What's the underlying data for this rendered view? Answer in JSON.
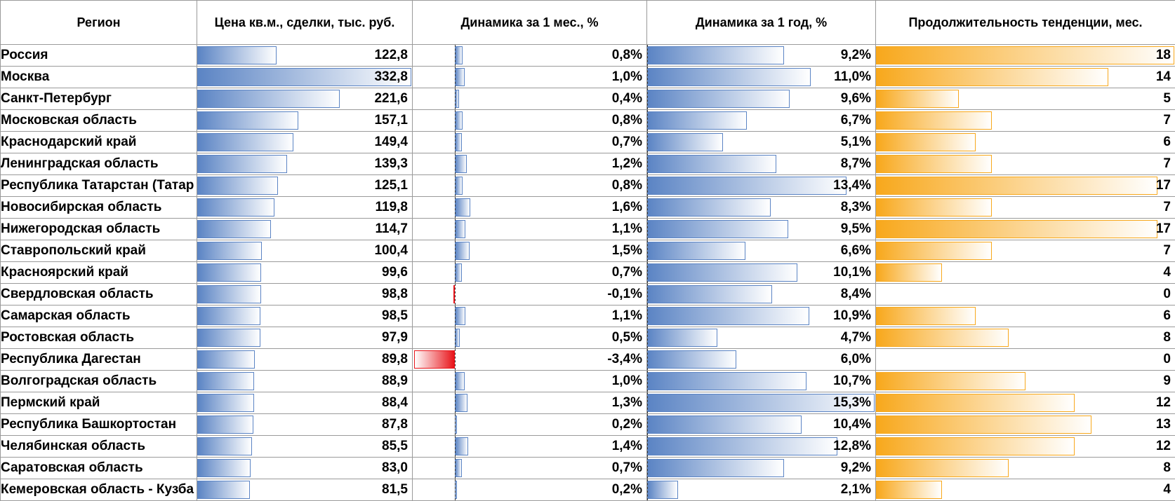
{
  "headers": {
    "region": "Регион",
    "price": "Цена кв.м., сделки, тыс. руб.",
    "month": "Динамика за 1 мес., %",
    "year": "Динамика за 1 год, %",
    "duration": "Продолжительность тенденции, мес."
  },
  "rows": [
    {
      "region": "Россия",
      "price": "122,8",
      "price_value": 122.8,
      "month": "0,8%",
      "month_value": 0.8,
      "year": "9,2%",
      "year_value": 9.2,
      "duration": "18",
      "duration_value": 18
    },
    {
      "region": "Москва",
      "price": "332,8",
      "price_value": 332.8,
      "month": "1,0%",
      "month_value": 1.0,
      "year": "11,0%",
      "year_value": 11.0,
      "duration": "14",
      "duration_value": 14
    },
    {
      "region": "Санкт-Петербург",
      "price": "221,6",
      "price_value": 221.6,
      "month": "0,4%",
      "month_value": 0.4,
      "year": "9,6%",
      "year_value": 9.6,
      "duration": "5",
      "duration_value": 5
    },
    {
      "region": "Московская область",
      "price": "157,1",
      "price_value": 157.1,
      "month": "0,8%",
      "month_value": 0.8,
      "year": "6,7%",
      "year_value": 6.7,
      "duration": "7",
      "duration_value": 7
    },
    {
      "region": "Краснодарский край",
      "price": "149,4",
      "price_value": 149.4,
      "month": "0,7%",
      "month_value": 0.7,
      "year": "5,1%",
      "year_value": 5.1,
      "duration": "6",
      "duration_value": 6
    },
    {
      "region": "Ленинградская область",
      "price": "139,3",
      "price_value": 139.3,
      "month": "1,2%",
      "month_value": 1.2,
      "year": "8,7%",
      "year_value": 8.7,
      "duration": "7",
      "duration_value": 7
    },
    {
      "region": "Республика Татарстан (Татар",
      "price": "125,1",
      "price_value": 125.1,
      "month": "0,8%",
      "month_value": 0.8,
      "year": "13,4%",
      "year_value": 13.4,
      "duration": "17",
      "duration_value": 17
    },
    {
      "region": "Новосибирская область",
      "price": "119,8",
      "price_value": 119.8,
      "month": "1,6%",
      "month_value": 1.6,
      "year": "8,3%",
      "year_value": 8.3,
      "duration": "7",
      "duration_value": 7
    },
    {
      "region": "Нижегородская область",
      "price": "114,7",
      "price_value": 114.7,
      "month": "1,1%",
      "month_value": 1.1,
      "year": "9,5%",
      "year_value": 9.5,
      "duration": "17",
      "duration_value": 17
    },
    {
      "region": "Ставропольский край",
      "price": "100,4",
      "price_value": 100.4,
      "month": "1,5%",
      "month_value": 1.5,
      "year": "6,6%",
      "year_value": 6.6,
      "duration": "7",
      "duration_value": 7
    },
    {
      "region": "Красноярский край",
      "price": "99,6",
      "price_value": 99.6,
      "month": "0,7%",
      "month_value": 0.7,
      "year": "10,1%",
      "year_value": 10.1,
      "duration": "4",
      "duration_value": 4
    },
    {
      "region": "Свердловская область",
      "price": "98,8",
      "price_value": 98.8,
      "month": "-0,1%",
      "month_value": -0.1,
      "year": "8,4%",
      "year_value": 8.4,
      "duration": "0",
      "duration_value": 0
    },
    {
      "region": "Самарская область",
      "price": "98,5",
      "price_value": 98.5,
      "month": "1,1%",
      "month_value": 1.1,
      "year": "10,9%",
      "year_value": 10.9,
      "duration": "6",
      "duration_value": 6
    },
    {
      "region": "Ростовская область",
      "price": "97,9",
      "price_value": 97.9,
      "month": "0,5%",
      "month_value": 0.5,
      "year": "4,7%",
      "year_value": 4.7,
      "duration": "8",
      "duration_value": 8
    },
    {
      "region": "Республика Дагестан",
      "price": "89,8",
      "price_value": 89.8,
      "month": "-3,4%",
      "month_value": -3.4,
      "year": "6,0%",
      "year_value": 6.0,
      "duration": "0",
      "duration_value": 0
    },
    {
      "region": "Волгоградская область",
      "price": "88,9",
      "price_value": 88.9,
      "month": "1,0%",
      "month_value": 1.0,
      "year": "10,7%",
      "year_value": 10.7,
      "duration": "9",
      "duration_value": 9
    },
    {
      "region": "Пермский край",
      "price": "88,4",
      "price_value": 88.4,
      "month": "1,3%",
      "month_value": 1.3,
      "year": "15,3%",
      "year_value": 15.3,
      "duration": "12",
      "duration_value": 12
    },
    {
      "region": "Республика Башкортостан",
      "price": "87,8",
      "price_value": 87.8,
      "month": "0,2%",
      "month_value": 0.2,
      "year": "10,4%",
      "year_value": 10.4,
      "duration": "13",
      "duration_value": 13
    },
    {
      "region": "Челябинская область",
      "price": "85,5",
      "price_value": 85.5,
      "month": "1,4%",
      "month_value": 1.4,
      "year": "12,8%",
      "year_value": 12.8,
      "duration": "12",
      "duration_value": 12
    },
    {
      "region": "Саратовская область",
      "price": "83,0",
      "price_value": 83.0,
      "month": "0,7%",
      "month_value": 0.7,
      "year": "9,2%",
      "year_value": 9.2,
      "duration": "8",
      "duration_value": 8
    },
    {
      "region": "Кемеровская область - Кузба",
      "price": "81,5",
      "price_value": 81.5,
      "month": "0,2%",
      "month_value": 0.2,
      "year": "2,1%",
      "year_value": 2.1,
      "duration": "4",
      "duration_value": 4
    }
  ],
  "colors": {
    "positive_bar": "#5b84c4",
    "negative_bar": "#e8141a",
    "duration_bar": "#f8a81c",
    "grid": "#9a9a9a"
  }
}
